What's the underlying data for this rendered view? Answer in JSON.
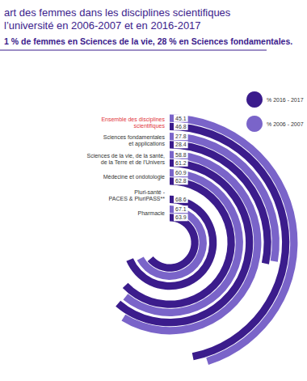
{
  "chart_data": {
    "type": "polar_bar",
    "title": "art des femmes dans les disciplines scientifiques\nl’université en 2006-2007 et en 2016-2017",
    "subtitle": "1 % de femmes en Sciences de la vie, 28 % en Sciences fondamentales.",
    "categories": [
      "Ensemble des disciplines\nscientifiques",
      "Sciences fondamentales\net applications",
      "Sciences de la vie, de la santé,\nde la Terre et de l’Univers",
      "Médecine et ondotologie",
      "Pluri-santé -\nPACES & PluriPASS**",
      "Pharmacie"
    ],
    "series": [
      {
        "name": "% 2016 - 2017",
        "color": "#3b1c8c",
        "values": [
          46.8,
          28.4,
          61.2,
          62.8,
          68.6,
          63.9
        ]
      },
      {
        "name": "% 2006 - 2007",
        "color": "#7a64c9",
        "values": [
          45.1,
          27.8,
          58.8,
          60.9,
          null,
          67.1
        ]
      }
    ],
    "ylim": [
      0,
      100
    ],
    "tick_labels": false,
    "data_labels": true,
    "legend": "right"
  }
}
